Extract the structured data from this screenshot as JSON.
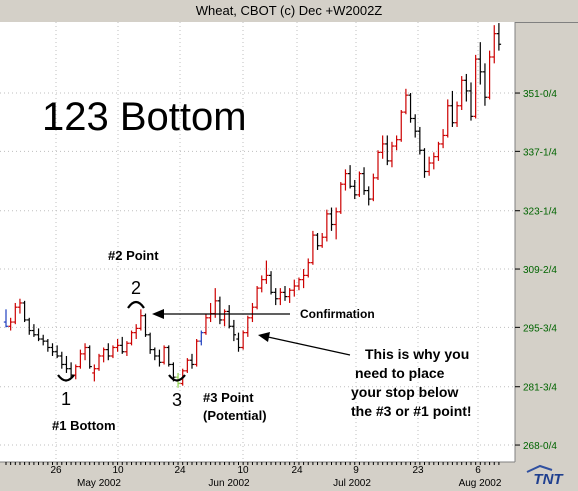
{
  "window": {
    "title": "Wheat, CBOT (c) Dec +W2002Z"
  },
  "brand": {
    "logo_text": "TNT"
  },
  "chart_data": {
    "type": "ohlc",
    "title": "Wheat, CBOT (c) Dec +W2002Z",
    "y_ticks": [
      "268-0/4",
      "281-3/4",
      "295-3/4",
      "309-2/4",
      "323-1/4",
      "337-1/4",
      "351-0/4"
    ],
    "y_tick_values": [
      268.0,
      281.75,
      295.75,
      309.5,
      323.25,
      337.25,
      351.0
    ],
    "ylim": [
      264.0,
      367.75
    ],
    "x_day_ticks": [
      "26",
      "10",
      "24",
      "10",
      "24",
      "9",
      "23",
      "6"
    ],
    "x_month_ticks": [
      "May 2002",
      "Jun 2002",
      "Jul 2002",
      "Aug 2002"
    ],
    "grid": true,
    "colors": {
      "up": "#cc0000",
      "down": "#000000",
      "special": [
        "#1f3fbf",
        "#8fd14f"
      ],
      "axis_text": "#006400",
      "plot_bg": "#ffffff",
      "grid": "#bfbfbf"
    },
    "bars": [
      [
        297.0,
        300.0,
        295.75,
        296.0
      ],
      [
        296.0,
        298.0,
        295.0,
        297.0
      ],
      [
        297.0,
        301.5,
        296.5,
        300.5
      ],
      [
        300.5,
        302.5,
        299.0,
        301.5
      ],
      [
        301.5,
        302.0,
        297.0,
        297.5
      ],
      [
        297.5,
        298.0,
        294.0,
        295.0
      ],
      [
        295.0,
        296.5,
        293.5,
        294.0
      ],
      [
        294.0,
        295.5,
        292.5,
        293.0
      ],
      [
        293.0,
        294.0,
        291.5,
        292.5
      ],
      [
        292.5,
        293.0,
        290.0,
        291.0
      ],
      [
        291.0,
        292.0,
        289.0,
        290.0
      ],
      [
        290.0,
        291.5,
        288.5,
        289.0
      ],
      [
        289.0,
        290.0,
        286.0,
        287.0
      ],
      [
        287.0,
        289.0,
        285.0,
        286.0
      ],
      [
        286.0,
        287.5,
        284.0,
        284.5
      ],
      [
        284.5,
        287.0,
        283.5,
        286.5
      ],
      [
        286.5,
        290.5,
        286.0,
        289.5
      ],
      [
        289.5,
        292.0,
        288.0,
        291.0
      ],
      [
        291.0,
        291.5,
        286.0,
        286.5
      ],
      [
        285.0,
        287.0,
        283.0,
        286.0
      ],
      [
        286.0,
        289.5,
        285.5,
        289.0
      ],
      [
        289.0,
        291.0,
        287.5,
        290.5
      ],
      [
        290.5,
        292.0,
        288.0,
        289.0
      ],
      [
        289.0,
        291.5,
        288.5,
        291.0
      ],
      [
        291.0,
        293.0,
        290.0,
        291.5
      ],
      [
        291.5,
        293.5,
        289.5,
        290.0
      ],
      [
        290.0,
        292.5,
        289.0,
        292.0
      ],
      [
        292.0,
        295.0,
        291.5,
        294.5
      ],
      [
        294.5,
        296.5,
        293.0,
        295.5
      ],
      [
        295.5,
        300.0,
        295.0,
        298.5
      ],
      [
        298.5,
        299.0,
        293.5,
        294.0
      ],
      [
        294.0,
        294.5,
        289.5,
        290.5
      ],
      [
        290.5,
        291.0,
        288.0,
        289.0
      ],
      [
        289.0,
        290.5,
        286.5,
        287.5
      ],
      [
        287.5,
        291.5,
        287.0,
        291.0
      ],
      [
        291.0,
        291.5,
        286.5,
        287.0
      ],
      [
        287.0,
        287.5,
        283.0,
        284.0
      ],
      [
        284.0,
        285.0,
        281.5,
        282.5
      ],
      [
        282.5,
        286.0,
        282.0,
        285.5
      ],
      [
        285.5,
        288.5,
        285.0,
        288.0
      ],
      [
        288.0,
        289.5,
        286.0,
        287.0
      ],
      [
        287.0,
        293.0,
        286.5,
        292.5
      ],
      [
        292.5,
        295.0,
        291.5,
        294.5
      ],
      [
        294.5,
        299.0,
        294.0,
        298.0
      ],
      [
        298.0,
        301.5,
        297.0,
        299.0
      ],
      [
        299.0,
        305.0,
        298.0,
        302.0
      ],
      [
        302.0,
        303.0,
        296.5,
        297.5
      ],
      [
        297.5,
        300.0,
        296.0,
        299.5
      ],
      [
        299.5,
        301.0,
        295.5,
        296.0
      ],
      [
        296.0,
        297.5,
        292.5,
        294.0
      ],
      [
        293.0,
        294.5,
        290.0,
        291.0
      ],
      [
        291.0,
        295.0,
        290.5,
        294.5
      ],
      [
        294.5,
        298.5,
        293.5,
        298.0
      ],
      [
        298.0,
        301.5,
        297.0,
        300.5
      ],
      [
        300.5,
        305.5,
        300.0,
        305.0
      ],
      [
        305.0,
        308.0,
        304.0,
        307.0
      ],
      [
        307.0,
        311.5,
        306.0,
        308.0
      ],
      [
        308.0,
        309.0,
        303.5,
        304.0
      ],
      [
        304.0,
        305.0,
        301.0,
        302.5
      ],
      [
        302.5,
        305.0,
        301.0,
        304.0
      ],
      [
        304.0,
        305.5,
        302.0,
        303.0
      ],
      [
        303.0,
        305.0,
        301.5,
        304.5
      ],
      [
        304.5,
        307.0,
        303.0,
        305.5
      ],
      [
        305.5,
        307.5,
        304.5,
        307.0
      ],
      [
        307.0,
        309.5,
        305.0,
        308.0
      ],
      [
        308.0,
        312.0,
        307.5,
        311.0
      ],
      [
        311.0,
        318.5,
        310.5,
        317.5
      ],
      [
        317.5,
        318.0,
        314.0,
        315.0
      ],
      [
        315.0,
        318.0,
        314.5,
        317.0
      ],
      [
        317.0,
        323.5,
        316.0,
        322.5
      ],
      [
        322.5,
        324.0,
        318.5,
        320.0
      ],
      [
        320.0,
        324.0,
        316.5,
        323.0
      ],
      [
        323.0,
        330.0,
        322.5,
        329.5
      ],
      [
        329.5,
        333.0,
        328.0,
        332.0
      ],
      [
        332.0,
        334.0,
        328.5,
        329.0
      ],
      [
        329.0,
        330.5,
        326.0,
        327.0
      ],
      [
        327.0,
        332.5,
        326.5,
        332.0
      ],
      [
        332.0,
        333.5,
        327.0,
        328.0
      ],
      [
        328.0,
        329.0,
        324.5,
        326.0
      ],
      [
        326.0,
        332.0,
        325.5,
        331.0
      ],
      [
        331.0,
        337.5,
        330.5,
        337.0
      ],
      [
        337.0,
        341.0,
        335.5,
        339.0
      ],
      [
        339.0,
        341.0,
        334.0,
        335.0
      ],
      [
        335.0,
        339.5,
        333.5,
        338.5
      ],
      [
        338.5,
        341.0,
        337.5,
        340.0
      ],
      [
        340.0,
        347.0,
        339.5,
        346.5
      ],
      [
        346.5,
        352.0,
        346.0,
        350.5
      ],
      [
        350.5,
        351.0,
        344.0,
        345.0
      ],
      [
        345.0,
        346.0,
        340.5,
        342.0
      ],
      [
        342.0,
        343.0,
        336.5,
        337.5
      ],
      [
        337.5,
        338.0,
        331.0,
        332.5
      ],
      [
        332.5,
        336.0,
        331.5,
        334.5
      ],
      [
        334.5,
        337.0,
        333.0,
        336.0
      ],
      [
        336.0,
        339.5,
        335.0,
        339.0
      ],
      [
        339.0,
        342.5,
        338.0,
        341.0
      ],
      [
        341.0,
        349.5,
        340.5,
        348.0
      ],
      [
        348.0,
        351.5,
        343.0,
        344.0
      ],
      [
        344.0,
        349.0,
        343.0,
        348.0
      ],
      [
        348.0,
        355.0,
        347.0,
        354.0
      ],
      [
        354.0,
        355.5,
        349.0,
        351.5
      ],
      [
        351.5,
        353.5,
        344.5,
        345.5
      ],
      [
        345.5,
        360.0,
        345.0,
        359.0
      ],
      [
        359.0,
        363.0,
        353.0,
        356.0
      ],
      [
        356.0,
        358.0,
        348.0,
        350.0
      ],
      [
        350.0,
        361.0,
        349.5,
        359.5
      ],
      [
        359.5,
        367.0,
        358.0,
        365.0
      ],
      [
        365.0,
        367.5,
        361.0,
        362.5
      ]
    ],
    "special_bars": [
      {
        "index": 0,
        "color": "#1f3fbf"
      },
      {
        "index": 37,
        "color": "#8fd14f"
      },
      {
        "index": 42,
        "color": "#1f3fbf"
      }
    ],
    "annotations": {
      "heading": "123 Bottom",
      "point2_title": "#2 Point",
      "label_1": "1",
      "label_2": "2",
      "label_3": "3",
      "bottom1": "#1 Bottom",
      "point3_line1": "#3 Point",
      "point3_line2": "(Potential)",
      "confirmation": "Confirmation",
      "stop_line1": "This is why you",
      "stop_line2": "need to place",
      "stop_line3": "your stop below",
      "stop_line4": "the #3 or #1 point!"
    }
  }
}
